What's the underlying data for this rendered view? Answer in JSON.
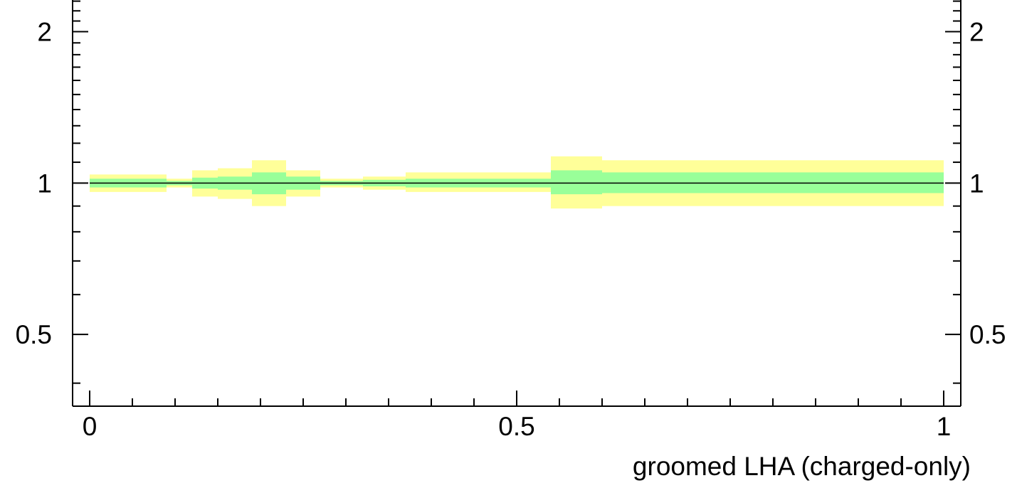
{
  "chart_data": {
    "type": "area",
    "title": "",
    "xlabel": "groomed LHA (charged-only)",
    "ylabel": "",
    "x_range": [
      -0.02,
      1.02
    ],
    "y_range": [
      0.36,
      2.35
    ],
    "log_y": true,
    "reference_line": 1,
    "x_major_ticks": [
      0,
      0.5,
      1
    ],
    "x_tick_labels": [
      "0",
      "0.5",
      "1"
    ],
    "y_major_ticks": [
      0.5,
      1,
      2
    ],
    "y_tick_labels": [
      "0.5",
      "1",
      "2"
    ],
    "bins": [
      {
        "x0": 0.0,
        "x1": 0.09,
        "inner": [
          0.98,
          1.02
        ],
        "outer": [
          0.96,
          1.04
        ]
      },
      {
        "x0": 0.09,
        "x1": 0.12,
        "inner": [
          0.99,
          1.01
        ],
        "outer": [
          0.98,
          1.02
        ]
      },
      {
        "x0": 0.12,
        "x1": 0.15,
        "inner": [
          0.975,
          1.025
        ],
        "outer": [
          0.94,
          1.06
        ]
      },
      {
        "x0": 0.15,
        "x1": 0.19,
        "inner": [
          0.97,
          1.03
        ],
        "outer": [
          0.93,
          1.07
        ]
      },
      {
        "x0": 0.19,
        "x1": 0.23,
        "inner": [
          0.95,
          1.05
        ],
        "outer": [
          0.9,
          1.11
        ]
      },
      {
        "x0": 0.23,
        "x1": 0.27,
        "inner": [
          0.97,
          1.03
        ],
        "outer": [
          0.94,
          1.06
        ]
      },
      {
        "x0": 0.27,
        "x1": 0.32,
        "inner": [
          0.99,
          1.01
        ],
        "outer": [
          0.98,
          1.02
        ]
      },
      {
        "x0": 0.32,
        "x1": 0.37,
        "inner": [
          0.985,
          1.015
        ],
        "outer": [
          0.97,
          1.03
        ]
      },
      {
        "x0": 0.37,
        "x1": 0.54,
        "inner": [
          0.98,
          1.02
        ],
        "outer": [
          0.96,
          1.05
        ]
      },
      {
        "x0": 0.54,
        "x1": 0.6,
        "inner": [
          0.95,
          1.06
        ],
        "outer": [
          0.89,
          1.13
        ]
      },
      {
        "x0": 0.6,
        "x1": 1.0,
        "inner": [
          0.955,
          1.05
        ],
        "outer": [
          0.9,
          1.11
        ]
      }
    ],
    "colors": {
      "inner_band": "#99ff99",
      "outer_band": "#ffff99",
      "line": "#000000",
      "axis": "#000000"
    }
  }
}
